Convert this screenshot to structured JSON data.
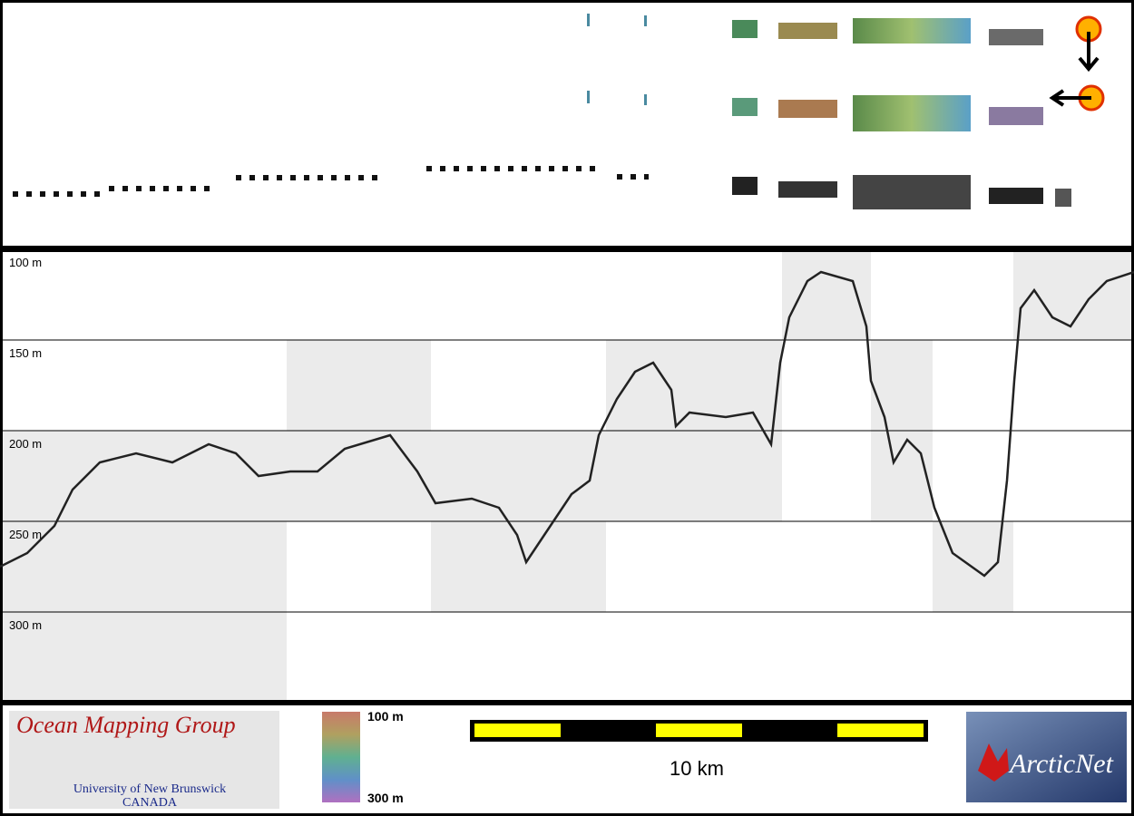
{
  "depth_labels": [
    "100 m",
    "150 m",
    "200 m",
    "250 m",
    "300 m"
  ],
  "footer": {
    "logo_left": {
      "title": "Ocean Mapping Group",
      "line1": "University of New Brunswick",
      "line2": "CANADA"
    },
    "colorbar": {
      "top": "100 m",
      "bottom": "300 m"
    },
    "scale_bar": {
      "label": "10 km"
    },
    "logo_right": {
      "title": "ArcticNet"
    }
  }
}
